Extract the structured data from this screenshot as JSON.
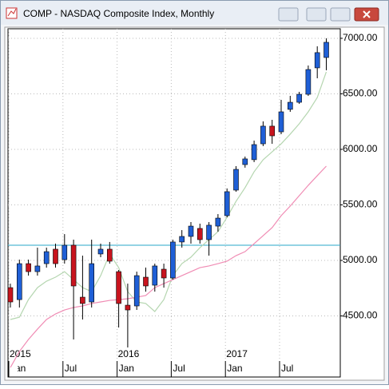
{
  "chart_data": {
    "type": "candlestick",
    "title": "COMP - NASDAQ Composite Index, Monthly",
    "categories": [
      "Jan",
      null,
      null,
      null,
      null,
      null,
      "Jul",
      null,
      null,
      null,
      null,
      null,
      "Jan",
      null,
      null,
      null,
      null,
      null,
      "Jul",
      null,
      null,
      null,
      null,
      null,
      "Jan",
      null,
      null,
      null,
      null,
      null,
      "Jul",
      null,
      null,
      null,
      null,
      null
    ],
    "year_labels": [
      "2015",
      null,
      null,
      null,
      null,
      null,
      null,
      null,
      null,
      null,
      null,
      null,
      "2016",
      null,
      null,
      null,
      null,
      null,
      null,
      null,
      null,
      null,
      null,
      null,
      "2017",
      null,
      null,
      null,
      null,
      null,
      null,
      null,
      null,
      null,
      null,
      null
    ],
    "open": [
      4755,
      4647,
      4971,
      4899,
      4971,
      5101,
      5007,
      5137,
      4669,
      4626,
      5058,
      5101,
      4899,
      4597,
      4590,
      4849,
      4777,
      4921,
      4842,
      5166,
      5216,
      5288,
      5187,
      5309,
      5403,
      5633,
      5863,
      5907,
      6050,
      6209,
      6158,
      6360,
      6424,
      6496,
      6734,
      6827
    ],
    "high": [
      4791,
      5007,
      5007,
      5115,
      5115,
      5151,
      5237,
      5187,
      5043,
      5187,
      5151,
      5166,
      4914,
      4791,
      4899,
      4935,
      4971,
      4971,
      5187,
      5273,
      5345,
      5331,
      5345,
      5417,
      5648,
      5849,
      5935,
      6079,
      6252,
      6266,
      6446,
      6482,
      6518,
      6755,
      6928,
      7000
    ],
    "low": [
      4576,
      4576,
      4863,
      4863,
      4935,
      4935,
      4971,
      4288,
      4468,
      4576,
      5029,
      4971,
      4396,
      4216,
      4554,
      4719,
      4719,
      4755,
      4827,
      5115,
      5151,
      5151,
      5043,
      5259,
      5388,
      5619,
      5835,
      5885,
      6029,
      6050,
      6137,
      6338,
      6410,
      6482,
      6640,
      6712
    ],
    "close": [
      4626,
      4971,
      4899,
      4950,
      5079,
      4971,
      5137,
      4770,
      4612,
      4971,
      5101,
      4993,
      4612,
      4554,
      4863,
      4770,
      4950,
      4842,
      5166,
      5216,
      5309,
      5187,
      5317,
      5381,
      5619,
      5820,
      5914,
      6043,
      6209,
      6122,
      6338,
      6424,
      6496,
      6719,
      6871,
      6964
    ],
    "up_color": "#1f5fd6",
    "down_color": "#c8141e",
    "series": [
      {
        "color": "#b5d6b0",
        "values": [
          4468,
          4489,
          4647,
          4755,
          4813,
          4849,
          4899,
          4827,
          4755,
          4719,
          4863,
          5058,
          4935,
          4719,
          4626,
          4612,
          4540,
          4647,
          4863,
          4971,
          5029,
          5115,
          5187,
          5259,
          5388,
          5532,
          5655,
          5798,
          5906,
          5978,
          6050,
          6137,
          6230,
          6338,
          6467,
          6698
        ]
      },
      {
        "color": "#f08cb4",
        "values": [
          4036,
          4180,
          4288,
          4381,
          4468,
          4518,
          4554,
          4576,
          4590,
          4612,
          4626,
          4640,
          4647,
          4655,
          4669,
          4684,
          4755,
          4791,
          4827,
          4863,
          4899,
          4935,
          4950,
          4971,
          4993,
          5043,
          5079,
          5151,
          5223,
          5295,
          5403,
          5489,
          5583,
          5676,
          5763,
          5849
        ]
      }
    ],
    "hline": 5137,
    "hline_color": "#2aa7c9",
    "ylim": [
      3950,
      7086
    ],
    "yticks": [
      {
        "value": 4500,
        "label": "4500.00"
      },
      {
        "value": 5000,
        "label": "5000.00"
      },
      {
        "value": 5500,
        "label": "5500.00"
      },
      {
        "value": 6000,
        "label": "6000.00"
      },
      {
        "value": 6500,
        "label": "6500.00"
      },
      {
        "value": 7000,
        "label": "7000.00"
      }
    ],
    "grid": true
  }
}
